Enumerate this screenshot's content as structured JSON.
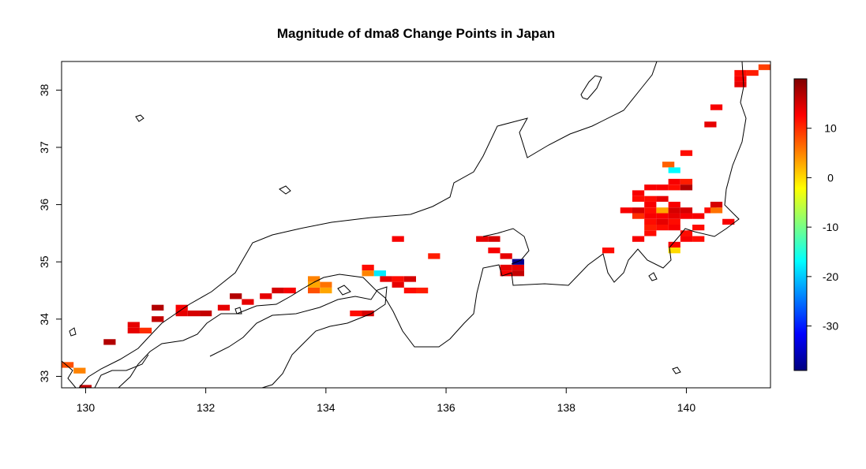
{
  "chart_data": {
    "type": "heatmap",
    "title": "Magnitude of dma8 Change Points in Japan",
    "xlabel": "",
    "ylabel": "",
    "xlim": [
      129.6,
      141.4
    ],
    "ylim": [
      32.8,
      38.5
    ],
    "xticks": [
      130,
      132,
      134,
      136,
      138,
      140
    ],
    "yticks": [
      33,
      34,
      35,
      36,
      37,
      38
    ],
    "cell_size": [
      0.2,
      0.1
    ],
    "colorbar": {
      "range": [
        -39,
        20
      ],
      "ticks": [
        10,
        0,
        -10,
        -20,
        -30
      ],
      "stops": [
        "#00007f",
        "#0000ff",
        "#007fff",
        "#00ffff",
        "#7fff7f",
        "#ffff00",
        "#ff7f00",
        "#ff0000",
        "#7f0000"
      ]
    },
    "cells": [
      [
        129.7,
        33.2,
        8
      ],
      [
        129.9,
        33.1,
        5
      ],
      [
        130.0,
        32.8,
        16
      ],
      [
        130.4,
        33.6,
        17
      ],
      [
        130.8,
        33.9,
        14
      ],
      [
        130.8,
        33.8,
        14
      ],
      [
        131.0,
        33.8,
        10
      ],
      [
        131.2,
        34.2,
        17
      ],
      [
        131.2,
        34.0,
        16
      ],
      [
        131.6,
        34.2,
        13
      ],
      [
        131.6,
        34.1,
        14
      ],
      [
        131.8,
        34.1,
        15
      ],
      [
        132.0,
        34.1,
        16
      ],
      [
        132.3,
        34.2,
        14
      ],
      [
        132.5,
        34.4,
        17
      ],
      [
        132.7,
        34.3,
        14
      ],
      [
        133.0,
        34.4,
        14
      ],
      [
        133.2,
        34.5,
        15
      ],
      [
        133.4,
        34.5,
        13
      ],
      [
        133.8,
        34.7,
        5
      ],
      [
        133.8,
        34.6,
        3
      ],
      [
        133.8,
        34.5,
        8
      ],
      [
        134.0,
        34.6,
        6
      ],
      [
        134.0,
        34.5,
        3
      ],
      [
        134.5,
        34.1,
        12
      ],
      [
        134.7,
        34.1,
        15
      ],
      [
        134.7,
        34.9,
        12
      ],
      [
        134.7,
        34.8,
        5
      ],
      [
        134.9,
        34.8,
        -18
      ],
      [
        135.0,
        34.7,
        14
      ],
      [
        135.2,
        34.7,
        12
      ],
      [
        135.2,
        34.6,
        14
      ],
      [
        135.4,
        34.7,
        15
      ],
      [
        135.4,
        34.5,
        12
      ],
      [
        135.6,
        34.5,
        11
      ],
      [
        135.2,
        35.4,
        13
      ],
      [
        135.8,
        35.1,
        11
      ],
      [
        136.6,
        35.4,
        14
      ],
      [
        136.8,
        35.4,
        15
      ],
      [
        136.8,
        35.2,
        13
      ],
      [
        137.0,
        35.1,
        14
      ],
      [
        137.0,
        34.9,
        14
      ],
      [
        137.0,
        34.8,
        13
      ],
      [
        137.2,
        34.9,
        14
      ],
      [
        137.2,
        34.8,
        16
      ],
      [
        137.2,
        35.0,
        -38
      ],
      [
        138.7,
        35.2,
        12
      ],
      [
        139.0,
        35.9,
        13
      ],
      [
        139.2,
        36.2,
        13
      ],
      [
        139.2,
        36.1,
        12
      ],
      [
        139.2,
        35.9,
        15
      ],
      [
        139.2,
        35.8,
        10
      ],
      [
        139.2,
        35.4,
        13
      ],
      [
        139.4,
        36.3,
        13
      ],
      [
        139.4,
        36.1,
        12
      ],
      [
        139.4,
        36.0,
        13
      ],
      [
        139.4,
        35.9,
        12
      ],
      [
        139.4,
        35.8,
        13
      ],
      [
        139.4,
        35.7,
        12
      ],
      [
        139.4,
        35.6,
        11
      ],
      [
        139.4,
        35.5,
        12
      ],
      [
        139.6,
        36.3,
        13
      ],
      [
        139.6,
        36.1,
        14
      ],
      [
        139.6,
        35.9,
        3
      ],
      [
        139.6,
        35.8,
        13
      ],
      [
        139.6,
        35.7,
        14
      ],
      [
        139.6,
        35.6,
        12
      ],
      [
        139.7,
        36.7,
        7
      ],
      [
        139.8,
        36.6,
        -17
      ],
      [
        139.8,
        36.4,
        13
      ],
      [
        139.8,
        36.3,
        12
      ],
      [
        139.8,
        36.0,
        13
      ],
      [
        139.8,
        35.9,
        15
      ],
      [
        139.8,
        35.8,
        14
      ],
      [
        139.8,
        35.7,
        12
      ],
      [
        139.8,
        35.6,
        13
      ],
      [
        139.8,
        35.3,
        13
      ],
      [
        139.8,
        35.2,
        0
      ],
      [
        140.0,
        36.9,
        12
      ],
      [
        140.0,
        36.4,
        11
      ],
      [
        140.0,
        36.3,
        17
      ],
      [
        140.0,
        35.9,
        15
      ],
      [
        140.0,
        35.8,
        13
      ],
      [
        140.0,
        35.5,
        12
      ],
      [
        140.0,
        35.4,
        13
      ],
      [
        140.2,
        35.8,
        13
      ],
      [
        140.2,
        35.6,
        12
      ],
      [
        140.2,
        35.4,
        12
      ],
      [
        140.4,
        35.9,
        12
      ],
      [
        140.4,
        37.4,
        14
      ],
      [
        140.5,
        37.7,
        13
      ],
      [
        140.5,
        35.9,
        6
      ],
      [
        140.5,
        36.0,
        15
      ],
      [
        140.7,
        35.7,
        13
      ],
      [
        140.9,
        38.3,
        12
      ],
      [
        140.9,
        38.2,
        13
      ],
      [
        140.9,
        38.1,
        14
      ],
      [
        141.1,
        38.3,
        11
      ],
      [
        141.3,
        38.4,
        9
      ]
    ]
  }
}
